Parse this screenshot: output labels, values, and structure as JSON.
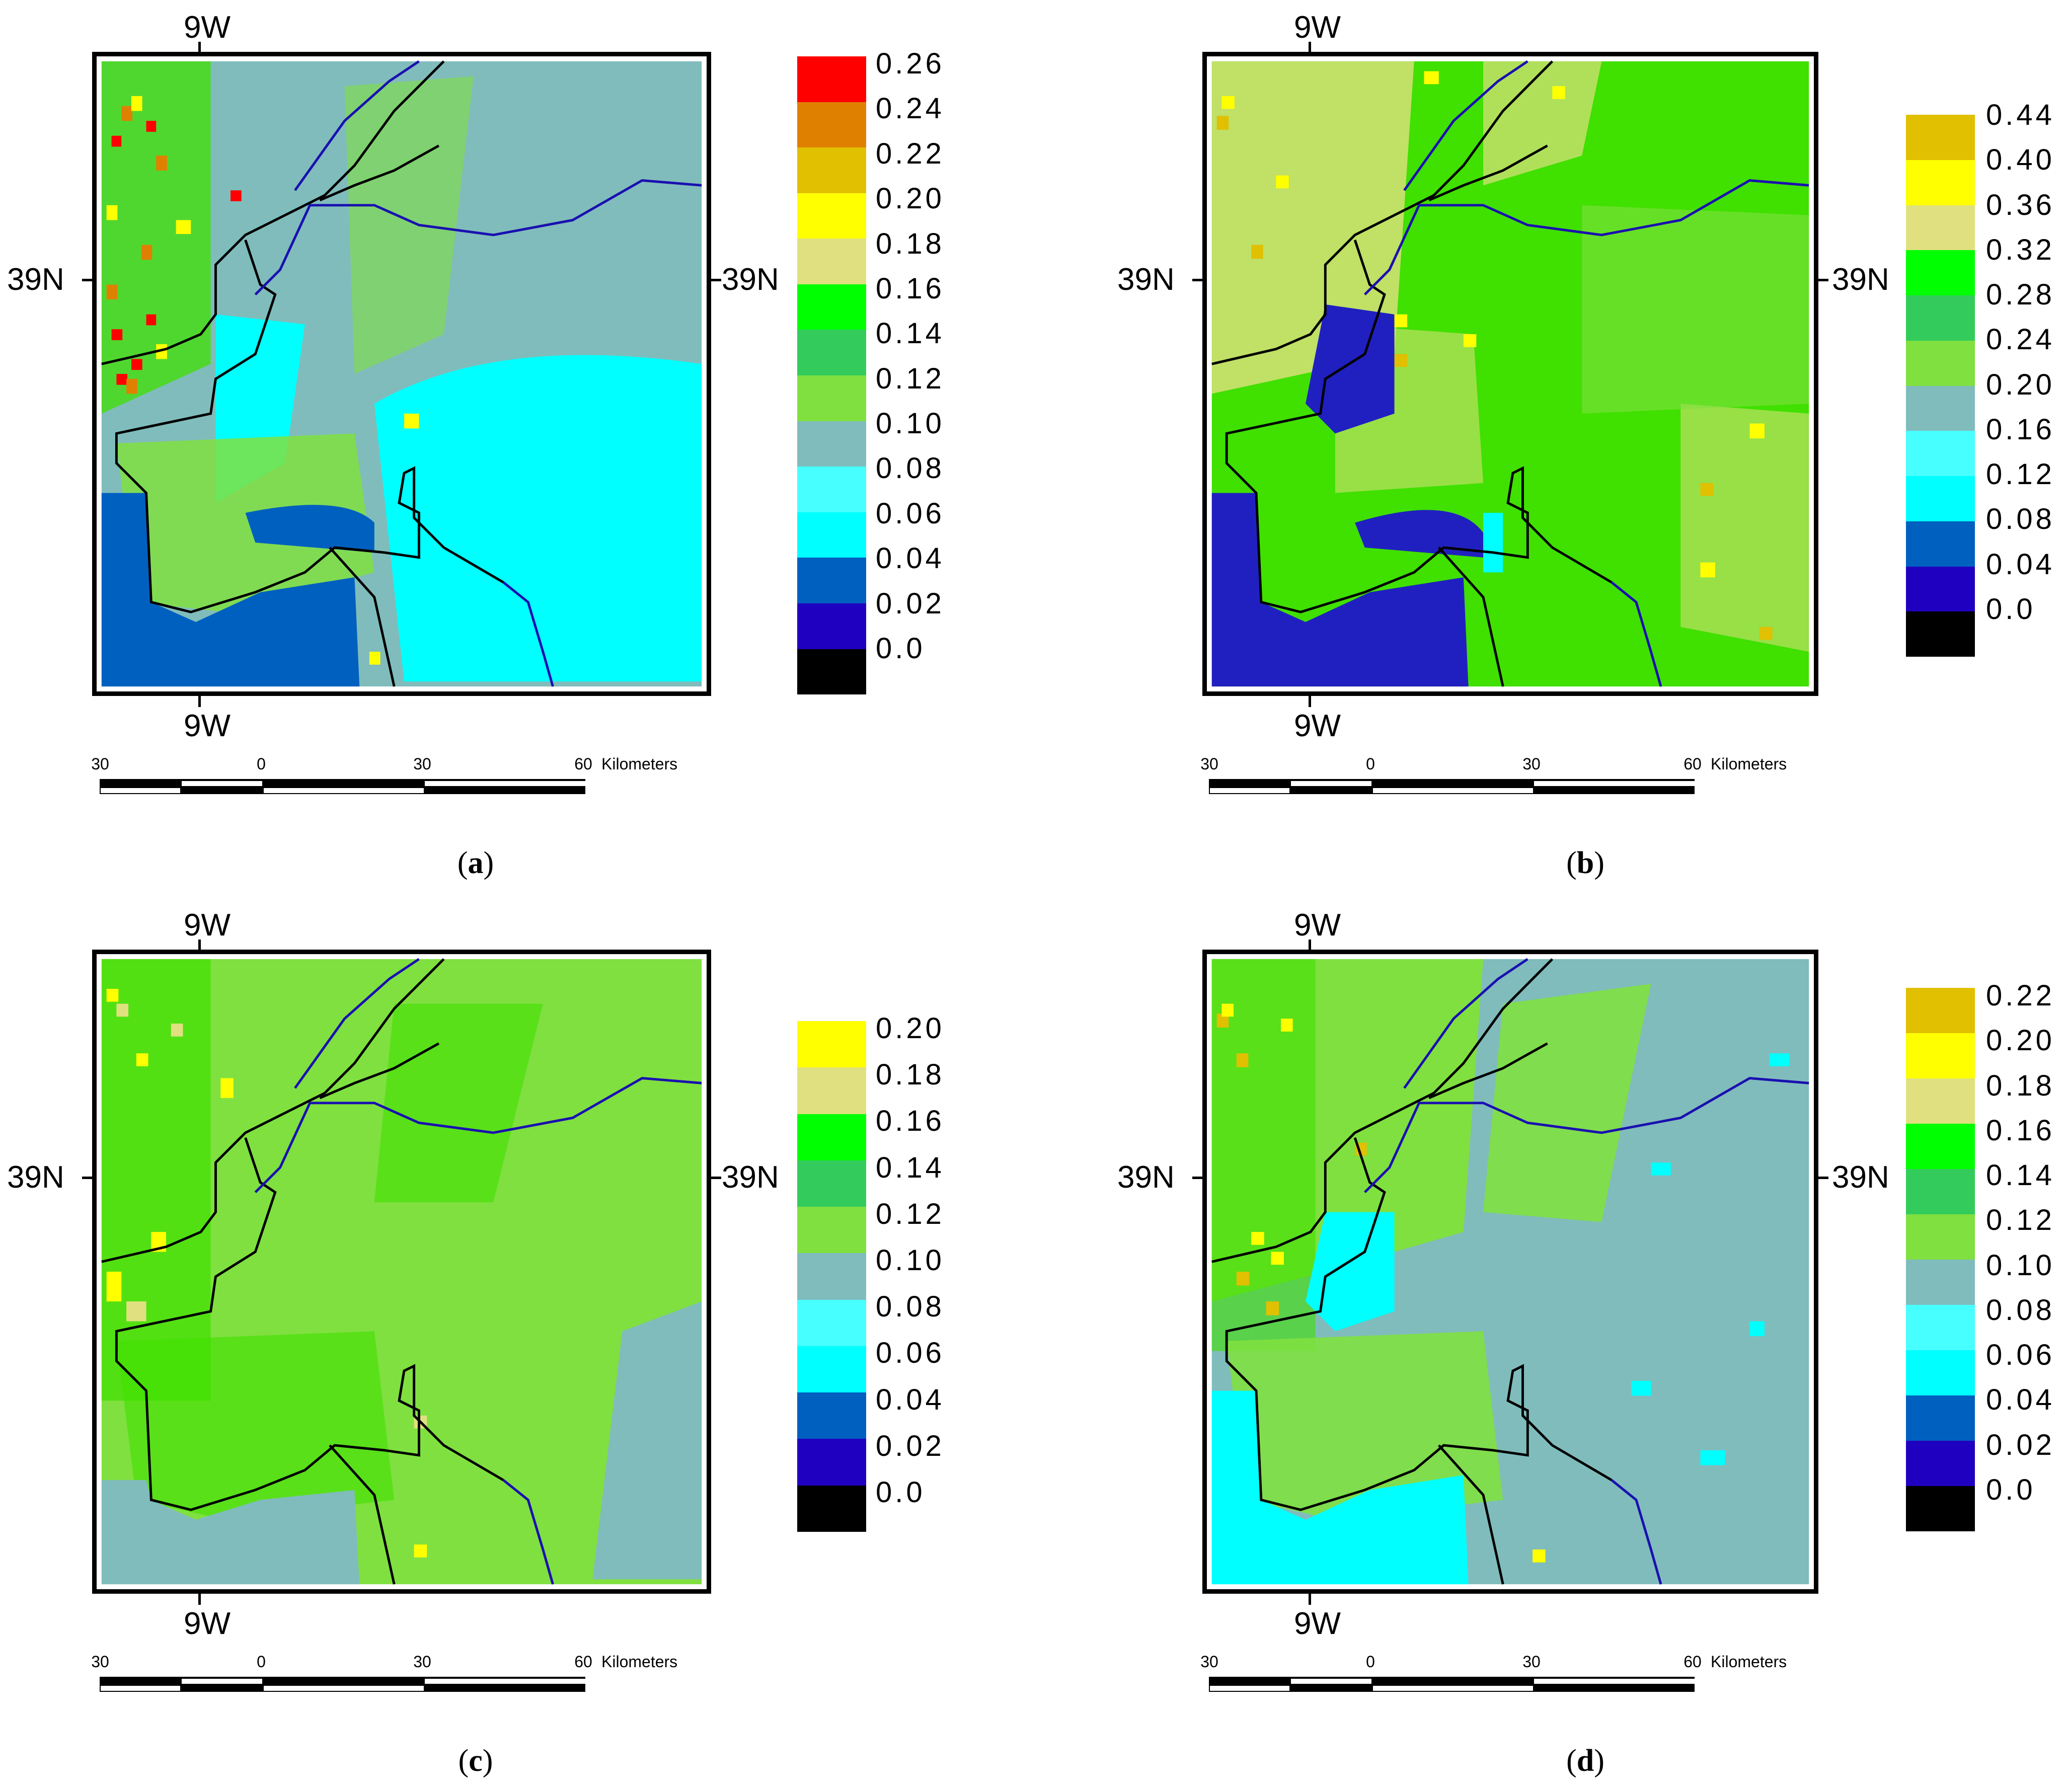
{
  "figure": {
    "panels": [
      {
        "id": "a",
        "caption_letter": "a",
        "lon_label_top": "9W",
        "lon_label_bottom": "9W",
        "lat_label_left": "39N",
        "lat_label_right": "39N",
        "legend": {
          "labels": [
            "0.26",
            "0.24",
            "0.22",
            "0.20",
            "0.18",
            "0.16",
            "0.14",
            "0.12",
            "0.10",
            "0.08",
            "0.06",
            "0.04",
            "0.02",
            "0.0"
          ],
          "colors": [
            "#FF0000",
            "#E08000",
            "#E0C000",
            "#FFFF00",
            "#E0E080",
            "#00FF00",
            "#33CC5C",
            "#80E040",
            "#80BCBC",
            "#48FFFF",
            "#00FFFF",
            "#0060C0",
            "#2000C0",
            "#000000"
          ]
        },
        "dominant": {
          "land_bg": "#80BCBC",
          "east_bg": "#00FFFF",
          "sea": "#0060C0",
          "patches": "#80E040"
        }
      },
      {
        "id": "b",
        "caption_letter": "b",
        "lon_label_top": "9W",
        "lon_label_bottom": "9W",
        "lat_label_left": "39N",
        "lat_label_right": "39N",
        "legend": {
          "labels": [
            "0.44",
            "0.40",
            "0.36",
            "0.32",
            "0.28",
            "0.24",
            "0.20",
            "0.16",
            "0.12",
            "0.08",
            "0.04",
            "0.0"
          ],
          "colors": [
            "#E0C000",
            "#FFFF00",
            "#E0E080",
            "#00FF00",
            "#33CC5C",
            "#80E040",
            "#80BCBC",
            "#48FFFF",
            "#00FFFF",
            "#0060C0",
            "#2000C0",
            "#000000"
          ]
        },
        "dominant": {
          "land_bg": "#40E000",
          "east_bg": "#40E000",
          "sea": "#2020C0",
          "patches": "#E0E080"
        }
      },
      {
        "id": "c",
        "caption_letter": "c",
        "lon_label_top": "9W",
        "lon_label_bottom": "9W",
        "lat_label_left": "39N",
        "lat_label_right": "39N",
        "legend": {
          "labels": [
            "0.20",
            "0.18",
            "0.16",
            "0.14",
            "0.12",
            "0.10",
            "0.08",
            "0.06",
            "0.04",
            "0.02",
            "0.0"
          ],
          "colors": [
            "#FFFF00",
            "#E0E080",
            "#00FF00",
            "#33CC5C",
            "#80E040",
            "#80BCBC",
            "#48FFFF",
            "#00FFFF",
            "#0060C0",
            "#2000C0",
            "#000000"
          ]
        },
        "dominant": {
          "land_bg": "#80E040",
          "east_bg": "#80E040",
          "sea": "#80BCBC",
          "patches": "#40E000"
        }
      },
      {
        "id": "d",
        "caption_letter": "d",
        "lon_label_top": "9W",
        "lon_label_bottom": "9W",
        "lat_label_left": "39N",
        "lat_label_right": "39N",
        "legend": {
          "labels": [
            "0.22",
            "0.20",
            "0.18",
            "0.16",
            "0.14",
            "0.12",
            "0.10",
            "0.08",
            "0.06",
            "0.04",
            "0.02",
            "0.0"
          ],
          "colors": [
            "#E0C000",
            "#FFFF00",
            "#E0E080",
            "#00FF00",
            "#33CC5C",
            "#80E040",
            "#80BCBC",
            "#48FFFF",
            "#00FFFF",
            "#0060C0",
            "#2000C0",
            "#000000"
          ]
        },
        "dominant": {
          "land_bg": "#80E040",
          "east_bg": "#80BCBC",
          "sea": "#00FFFF",
          "patches": "#40E000"
        }
      }
    ],
    "scale_bar": {
      "ticks": [
        "30",
        "0",
        "30",
        "60"
      ],
      "unit": "Kilometers"
    },
    "colors": {
      "coastline": "#000000",
      "river": "#1A10B0"
    }
  },
  "chart_data": [
    {
      "type": "heatmap",
      "panel": "a",
      "title": "(a)",
      "xlabel": "9W",
      "ylabel": "39N",
      "colorbar_ticks": [
        0.0,
        0.02,
        0.04,
        0.06,
        0.08,
        0.1,
        0.12,
        0.14,
        0.16,
        0.18,
        0.2,
        0.22,
        0.24,
        0.26
      ],
      "colorbar_range": [
        0.0,
        0.26
      ],
      "scale_km": [
        30,
        0,
        30,
        60
      ]
    },
    {
      "type": "heatmap",
      "panel": "b",
      "title": "(b)",
      "xlabel": "9W",
      "ylabel": "39N",
      "colorbar_ticks": [
        0.0,
        0.04,
        0.08,
        0.12,
        0.16,
        0.2,
        0.24,
        0.28,
        0.32,
        0.36,
        0.4,
        0.44
      ],
      "colorbar_range": [
        0.0,
        0.44
      ],
      "scale_km": [
        30,
        0,
        30,
        60
      ]
    },
    {
      "type": "heatmap",
      "panel": "c",
      "title": "(c)",
      "xlabel": "9W",
      "ylabel": "39N",
      "colorbar_ticks": [
        0.0,
        0.02,
        0.04,
        0.06,
        0.08,
        0.1,
        0.12,
        0.14,
        0.16,
        0.18,
        0.2
      ],
      "colorbar_range": [
        0.0,
        0.2
      ],
      "scale_km": [
        30,
        0,
        30,
        60
      ]
    },
    {
      "type": "heatmap",
      "panel": "d",
      "title": "(d)",
      "xlabel": "9W",
      "ylabel": "39N",
      "colorbar_ticks": [
        0.0,
        0.02,
        0.04,
        0.06,
        0.08,
        0.1,
        0.12,
        0.14,
        0.16,
        0.18,
        0.2,
        0.22
      ],
      "colorbar_range": [
        0.0,
        0.22
      ],
      "scale_km": [
        30,
        0,
        30,
        60
      ]
    }
  ]
}
